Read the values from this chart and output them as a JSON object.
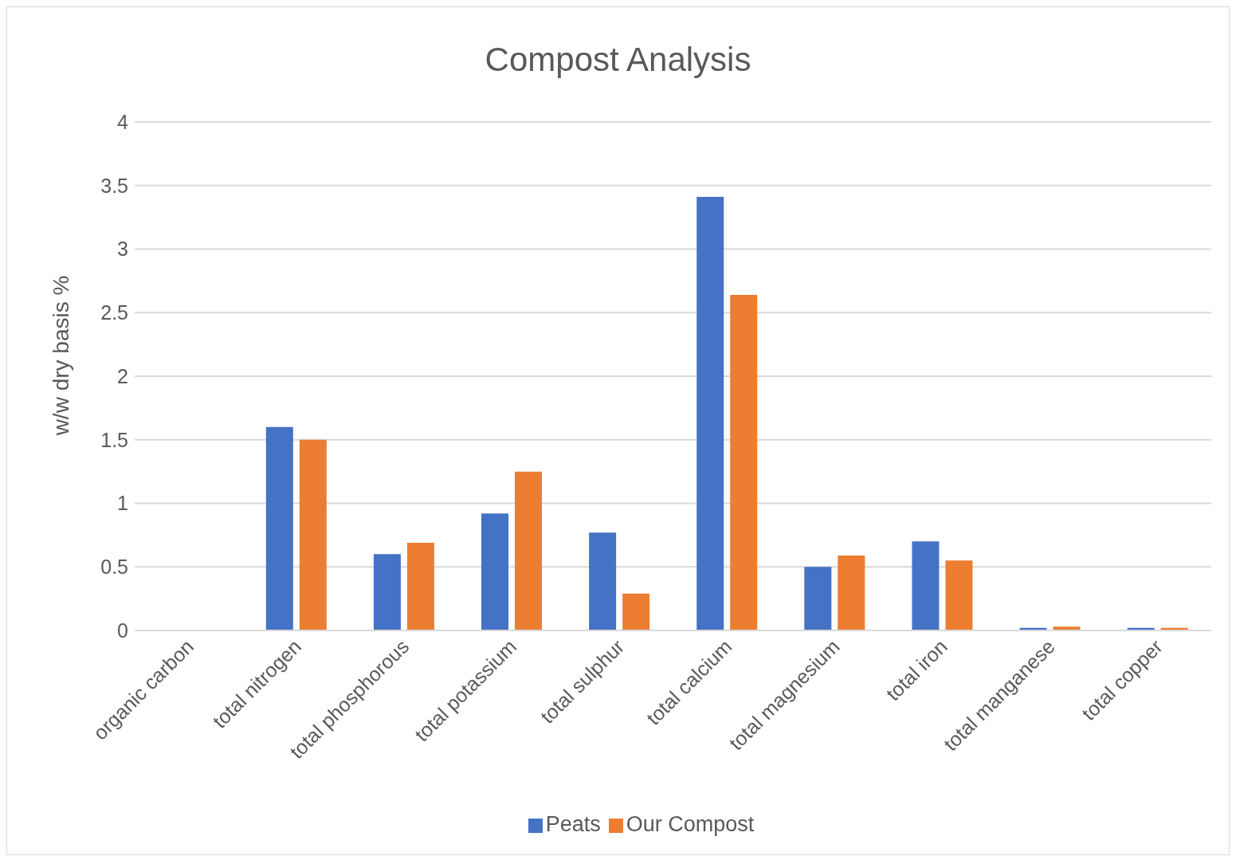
{
  "chart_data": {
    "type": "bar",
    "title": "Compost Analysis",
    "ylabel": "w/w dry basis %",
    "categories": [
      "organic carbon",
      "total nitrogen",
      "total phosphorous",
      "total potassium",
      "total sulphur",
      "total calcium",
      "total magnesium",
      "total iron",
      "total manganese",
      "total copper"
    ],
    "series": [
      {
        "name": "Peats",
        "color": "#4472c4",
        "values": [
          null,
          1.6,
          0.6,
          0.92,
          0.77,
          3.41,
          0.5,
          0.7,
          0.02,
          0.02
        ]
      },
      {
        "name": "Our Compost",
        "color": "#ed7d31",
        "values": [
          null,
          1.5,
          0.69,
          1.25,
          0.29,
          2.64,
          0.59,
          0.55,
          0.03,
          0.02
        ]
      }
    ],
    "ylim": [
      0,
      4
    ],
    "yticks": [
      0,
      0.5,
      1,
      1.5,
      2,
      2.5,
      3,
      3.5,
      4
    ],
    "grid": "y",
    "legend": "bottom"
  }
}
